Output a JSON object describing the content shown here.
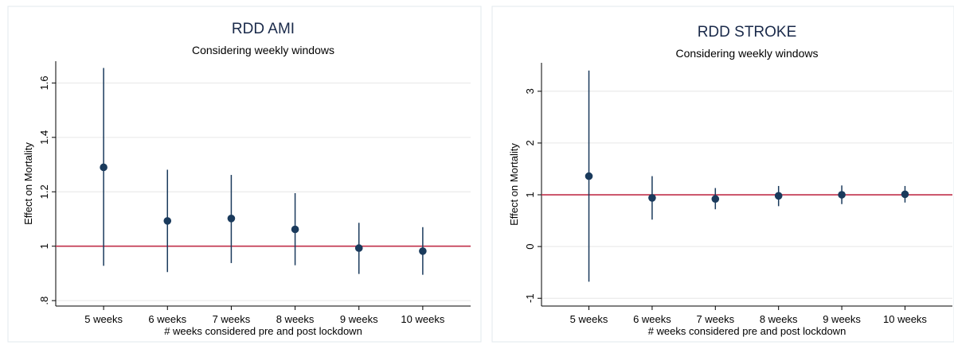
{
  "colors": {
    "marker": "#1a3a5c",
    "reference_line": "#c0304a",
    "grid": "#e6e6e6",
    "frame": "#e2e8ee"
  },
  "chart_data": [
    {
      "type": "scatter",
      "title": "RDD AMI",
      "subtitle": "Considering weekly windows",
      "xlabel": "# weeks considered pre and post lockdown",
      "ylabel": "Effect on Mortality",
      "categories": [
        "5 weeks",
        "6 weeks",
        "7 weeks",
        "8 weeks",
        "9 weeks",
        "10 weeks"
      ],
      "ylim": [
        0.78,
        1.68
      ],
      "yticks": [
        0.8,
        1,
        1.2,
        1.4,
        1.6
      ],
      "ytick_labels": [
        ".8",
        "1",
        "1.2",
        "1.4",
        "1.6"
      ],
      "reference_line": 1,
      "grid": true,
      "series": [
        {
          "estimates": [
            1.29,
            1.093,
            1.102,
            1.062,
            0.993,
            0.982
          ],
          "ci_low": [
            0.928,
            0.905,
            0.938,
            0.93,
            0.898,
            0.895
          ],
          "ci_high": [
            1.655,
            1.281,
            1.262,
            1.195,
            1.086,
            1.07
          ]
        }
      ]
    },
    {
      "type": "scatter",
      "title": "RDD STROKE",
      "subtitle": "Considering weekly windows",
      "xlabel": "# weeks considered pre and post lockdown",
      "ylabel": "Effect on Mortality",
      "categories": [
        "5 weeks",
        "6 weeks",
        "7 weeks",
        "8 weeks",
        "9 weeks",
        "10 weeks"
      ],
      "ylim": [
        -1.15,
        3.55
      ],
      "yticks": [
        -1,
        0,
        1,
        2,
        3
      ],
      "ytick_labels": [
        "-1",
        "0",
        "1",
        "2",
        "3"
      ],
      "reference_line": 1,
      "grid": true,
      "series": [
        {
          "estimates": [
            1.36,
            0.94,
            0.92,
            0.98,
            1.0,
            1.01
          ],
          "ci_low": [
            -0.68,
            0.52,
            0.72,
            0.78,
            0.82,
            0.85
          ],
          "ci_high": [
            3.4,
            1.36,
            1.13,
            1.17,
            1.18,
            1.17
          ]
        }
      ]
    }
  ]
}
